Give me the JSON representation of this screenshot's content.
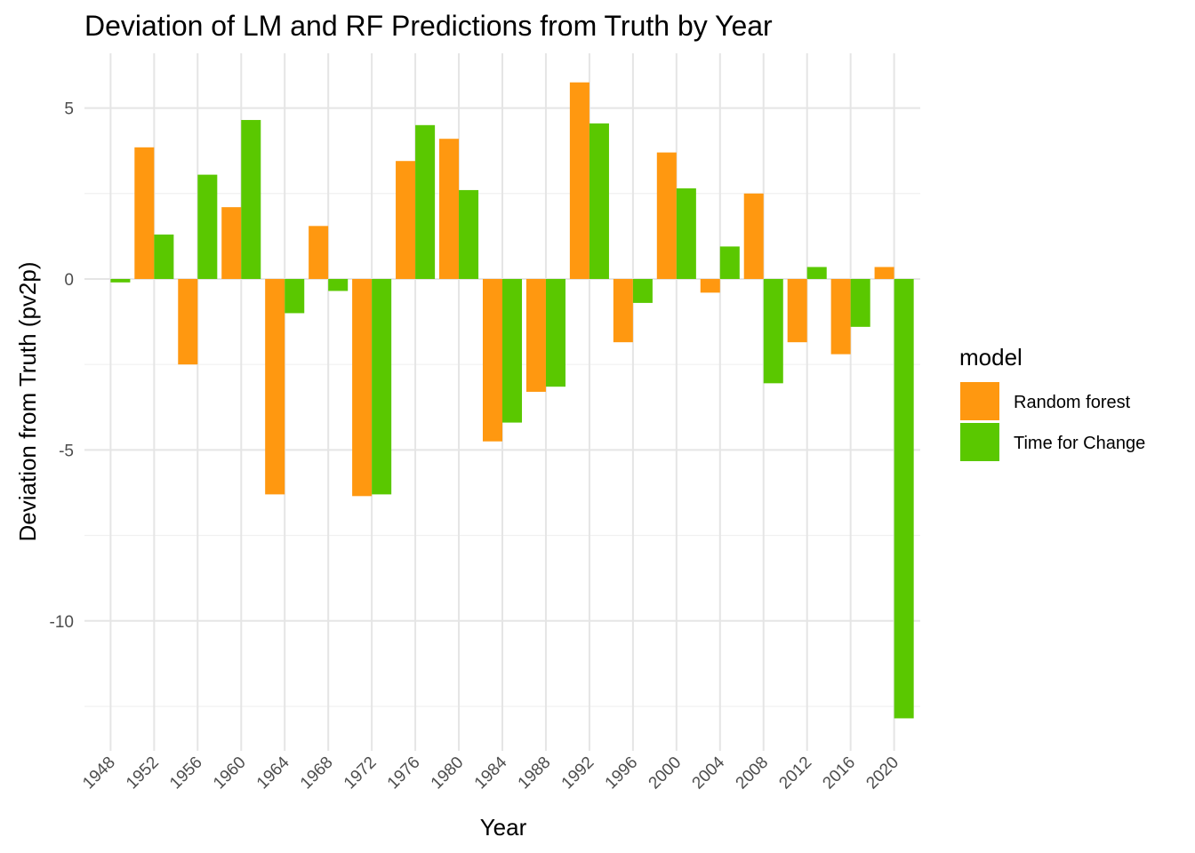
{
  "chart_data": {
    "type": "bar",
    "title": "Deviation of LM and RF Predictions from Truth by Year",
    "xlabel": "Year",
    "ylabel": "Deviation from Truth (pv2p)",
    "categories": [
      "1948",
      "1952",
      "1956",
      "1960",
      "1964",
      "1968",
      "1972",
      "1976",
      "1980",
      "1984",
      "1988",
      "1992",
      "1996",
      "2000",
      "2004",
      "2008",
      "2012",
      "2016",
      "2020"
    ],
    "y_ticks": [
      5,
      0,
      -5,
      -10
    ],
    "y_tick_labels": [
      "5",
      "0",
      "-5",
      "-10"
    ],
    "ylim": [
      -13.8,
      6.6
    ],
    "grid": true,
    "legend_title": "model",
    "legend_position": "right",
    "series": [
      {
        "name": "Random forest",
        "color": "#ff9810",
        "values": [
          null,
          3.85,
          -2.5,
          2.1,
          -6.3,
          1.55,
          -6.35,
          3.45,
          4.1,
          -4.75,
          -3.3,
          5.75,
          -1.85,
          3.7,
          -0.4,
          2.5,
          -1.85,
          -2.2,
          0.35
        ]
      },
      {
        "name": "Time for Change",
        "color": "#5ac800",
        "values": [
          -0.1,
          1.3,
          3.05,
          4.65,
          -1.0,
          -0.35,
          -6.3,
          4.5,
          2.6,
          -4.2,
          -3.15,
          4.55,
          -0.7,
          2.65,
          0.95,
          -3.05,
          0.35,
          -1.4,
          -12.85
        ]
      }
    ]
  }
}
